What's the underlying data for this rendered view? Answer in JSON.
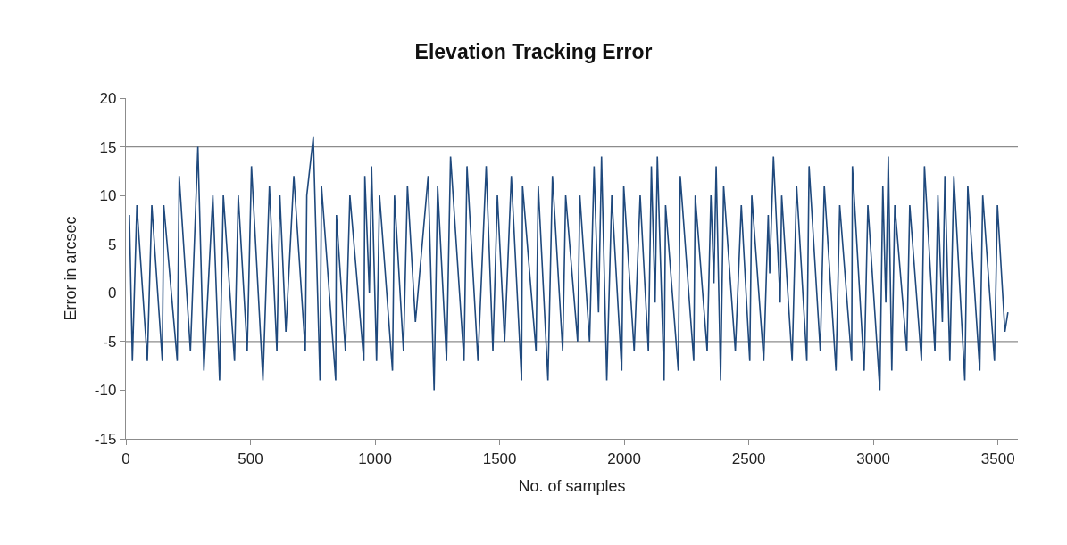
{
  "chart_data": {
    "type": "line",
    "title": "Elevation Tracking Error",
    "xlabel": "No. of samples",
    "ylabel": "Error in arcsec",
    "xlim": [
      0,
      3580
    ],
    "xticks": [
      0,
      500,
      1000,
      1500,
      2000,
      2500,
      3000,
      3500
    ],
    "ylim": [
      -15,
      20
    ],
    "yticks": [
      -15,
      -10,
      -5,
      0,
      5,
      10,
      15,
      20
    ],
    "marker": "none",
    "line_style": "solid",
    "ref_lines": [
      {
        "axis": "y",
        "value": 15,
        "label": null,
        "color": "#8c8c8c"
      },
      {
        "axis": "y",
        "value": -5,
        "label": null,
        "color": "#8c8c8c"
      }
    ],
    "series": [
      {
        "color": "#1f497d",
        "x": [
          14,
          26,
          44,
          86,
          104,
          146,
          152,
          206,
          214,
          259,
          289,
          313,
          349,
          376,
          391,
          436,
          451,
          487,
          504,
          550,
          576,
          606,
          618,
          642,
          674,
          720,
          726,
          752,
          779,
          785,
          842,
          845,
          881,
          899,
          955,
          959,
          977,
          986,
          1006,
          1018,
          1070,
          1078,
          1114,
          1130,
          1162,
          1213,
          1237,
          1251,
          1287,
          1303,
          1357,
          1369,
          1413,
          1446,
          1473,
          1491,
          1520,
          1547,
          1588,
          1592,
          1646,
          1655,
          1694,
          1712,
          1753,
          1765,
          1813,
          1822,
          1861,
          1879,
          1897,
          1909,
          1930,
          1950,
          1990,
          1998,
          2040,
          2064,
          2097,
          2109,
          2124,
          2133,
          2160,
          2166,
          2217,
          2225,
          2279,
          2285,
          2333,
          2348,
          2360,
          2369,
          2387,
          2399,
          2446,
          2470,
          2504,
          2512,
          2560,
          2578,
          2584,
          2599,
          2626,
          2632,
          2674,
          2692,
          2733,
          2742,
          2787,
          2803,
          2850,
          2865,
          2913,
          2916,
          2963,
          2978,
          3026,
          3038,
          3050,
          3060,
          3074,
          3086,
          3134,
          3146,
          3193,
          3205,
          3247,
          3259,
          3277,
          3287,
          3307,
          3323,
          3367,
          3379,
          3427,
          3439,
          3486,
          3498,
          3528,
          3540
        ],
        "values": [
          8,
          -7,
          9,
          -7,
          9,
          -7,
          9,
          -7,
          12,
          -6,
          15,
          -8,
          10,
          -9,
          10,
          -7,
          10,
          -6,
          13,
          -9,
          11,
          -6,
          10,
          -4,
          12,
          -6,
          10,
          16,
          -9,
          11,
          -9,
          8,
          -6,
          10,
          -7,
          12,
          0,
          13,
          -7,
          10,
          -8,
          10,
          -6,
          11,
          -3,
          12,
          -10,
          11,
          -7,
          14,
          -7,
          13,
          -7,
          13,
          -6,
          10,
          -5,
          12,
          -9,
          11,
          -6,
          11,
          -9,
          12,
          -6,
          10,
          -5,
          10,
          -5,
          13,
          -2,
          14,
          -9,
          10,
          -8,
          11,
          -6,
          10,
          -6,
          13,
          -1,
          14,
          -9,
          9,
          -8,
          12,
          -7,
          10,
          -6,
          10,
          1,
          13,
          -9,
          11,
          -6,
          9,
          -7,
          10,
          -7,
          8,
          2,
          14,
          -1,
          10,
          -7,
          11,
          -7,
          13,
          -6,
          11,
          -8,
          9,
          -7,
          13,
          -8,
          9,
          -10,
          11,
          -1,
          14,
          -8,
          9,
          -6,
          9,
          -7,
          13,
          -6,
          10,
          -3,
          12,
          -7,
          12,
          -9,
          11,
          -8,
          10,
          -7,
          9,
          -4,
          -2
        ]
      }
    ]
  }
}
